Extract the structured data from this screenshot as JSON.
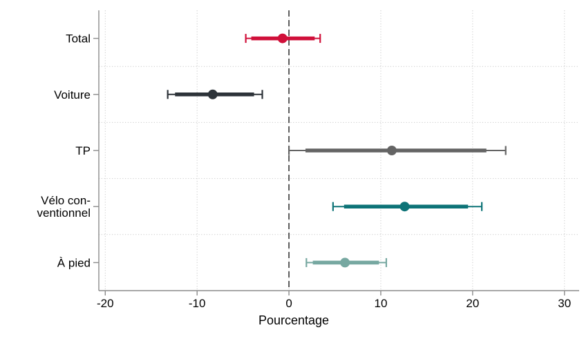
{
  "chart_data": {
    "type": "scatter",
    "subtype": "dot-and-whisker coefficient plot",
    "orientation": "horizontal",
    "title": "",
    "xlabel": "Pourcentage",
    "ylabel": "",
    "xlim": [
      -20.7,
      31.6
    ],
    "x_tick_values": [
      -20,
      -10,
      0,
      10,
      20,
      30
    ],
    "x_tick_labels": [
      "-20",
      "-10",
      "0",
      "10",
      "20",
      "30"
    ],
    "zero_line_value": 0,
    "grid": true,
    "legend": "none",
    "rows": [
      {
        "label": "Total",
        "lines": [
          "Total"
        ],
        "estimate": -0.7,
        "ci95": [
          -4.7,
          3.4
        ],
        "ci90": [
          -4.1,
          2.8
        ],
        "color": "#d0103a"
      },
      {
        "label": "Voiture",
        "lines": [
          "Voiture"
        ],
        "estimate": -8.3,
        "ci95": [
          -13.2,
          -2.9
        ],
        "ci90": [
          -12.4,
          -3.8
        ],
        "color": "#2d3339"
      },
      {
        "label": "TP",
        "lines": [
          "TP"
        ],
        "estimate": 11.2,
        "ci95": [
          0.0,
          23.6
        ],
        "ci90": [
          1.8,
          21.5
        ],
        "color": "#646464"
      },
      {
        "label": "Vélo conventionnel",
        "lines": [
          "Vélo con-",
          "ventionnel"
        ],
        "estimate": 12.6,
        "ci95": [
          4.8,
          21.0
        ],
        "ci90": [
          6.0,
          19.5
        ],
        "color": "#0d7377"
      },
      {
        "label": "À pied",
        "lines": [
          "À pied"
        ],
        "estimate": 6.1,
        "ci95": [
          1.9,
          10.6
        ],
        "ci90": [
          2.6,
          9.8
        ],
        "color": "#77a8a1"
      }
    ],
    "colors": {
      "axis": "#8a8a8a",
      "grid": "#c9c9c9",
      "zero_line": "#4a4a4a",
      "text": "#000000",
      "background": "#ffffff"
    }
  }
}
